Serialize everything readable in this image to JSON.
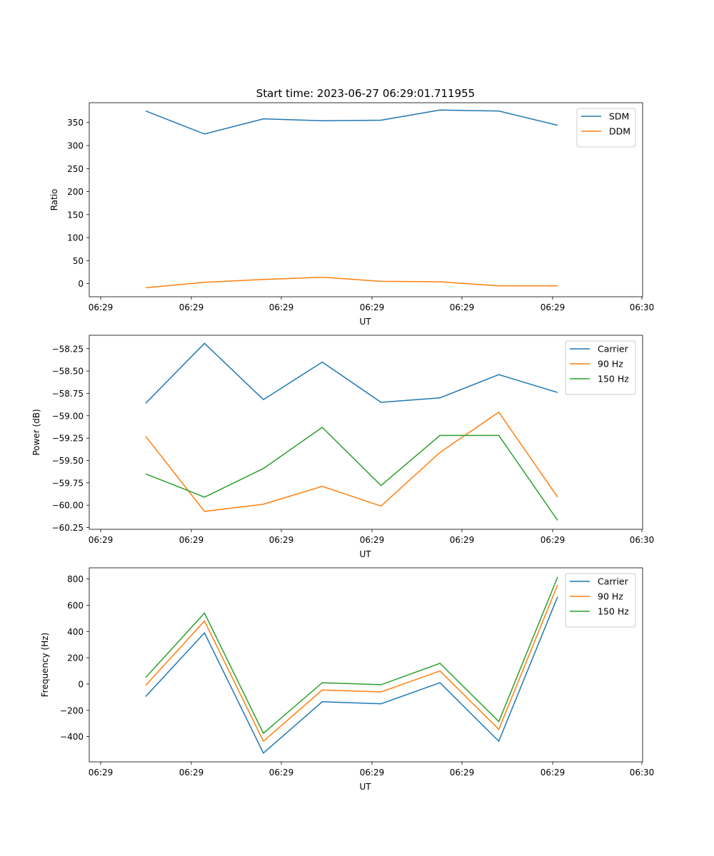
{
  "figure_title": "Start time: 2023-06-27 06:29:01.711955",
  "colors": {
    "blue": "#1f77b4",
    "orange": "#ff7f0e",
    "green": "#2ca02c"
  },
  "chart_data": [
    {
      "type": "line",
      "title": "Start time: 2023-06-27 06:29:01.711955",
      "xlabel": "UT",
      "ylabel": "Ratio",
      "x_tick_labels": [
        "06:29",
        "06:29",
        "06:29",
        "06:29",
        "06:29",
        "06:29",
        "06:30"
      ],
      "x": [
        "06:29:01.712",
        "06:29:02.367",
        "06:29:03.022",
        "06:29:03.677",
        "06:29:04.332",
        "06:29:04.987",
        "06:29:05.642",
        "06:29:06.297"
      ],
      "yticks": [
        0,
        50,
        100,
        150,
        200,
        250,
        300,
        350
      ],
      "ylim": [
        -28.5,
        393
      ],
      "legend": "top-right",
      "grid": false,
      "series": [
        {
          "name": "SDM",
          "color": "#1f77b4",
          "values": [
            375,
            325,
            358,
            354,
            355,
            377,
            375,
            344
          ]
        },
        {
          "name": "DDM",
          "color": "#ff7f0e",
          "values": [
            -9,
            3,
            9,
            14,
            5,
            4,
            -5,
            -5
          ]
        }
      ]
    },
    {
      "type": "line",
      "title": "",
      "xlabel": "UT",
      "ylabel": "Power (dB)",
      "x_tick_labels": [
        "06:29",
        "06:29",
        "06:29",
        "06:29",
        "06:29",
        "06:29",
        "06:30"
      ],
      "x": [
        "06:29:01.712",
        "06:29:02.367",
        "06:29:03.022",
        "06:29:03.677",
        "06:29:04.332",
        "06:29:04.987",
        "06:29:05.642",
        "06:29:06.297"
      ],
      "yticks": [
        -60.25,
        -60.0,
        -59.75,
        -59.5,
        -59.25,
        -59.0,
        -58.75,
        -58.5,
        -58.25
      ],
      "ylim": [
        -60.27,
        -58.1
      ],
      "legend": "top-right",
      "grid": false,
      "series": [
        {
          "name": "Carrier",
          "color": "#1f77b4",
          "values": [
            -58.86,
            -58.19,
            -58.82,
            -58.4,
            -58.85,
            -58.8,
            -58.54,
            -58.74
          ]
        },
        {
          "name": "90 Hz",
          "color": "#ff7f0e",
          "values": [
            -59.23,
            -60.07,
            -59.99,
            -59.79,
            -60.01,
            -59.41,
            -58.96,
            -59.91
          ]
        },
        {
          "name": "150 Hz",
          "color": "#2ca02c",
          "values": [
            -59.65,
            -59.91,
            -59.59,
            -59.13,
            -59.78,
            -59.22,
            -59.22,
            -60.17
          ]
        }
      ]
    },
    {
      "type": "line",
      "title": "",
      "xlabel": "UT",
      "ylabel": "Frequency (Hz)",
      "x_tick_labels": [
        "06:29",
        "06:29",
        "06:29",
        "06:29",
        "06:29",
        "06:29",
        "06:30"
      ],
      "x": [
        "06:29:01.712",
        "06:29:02.367",
        "06:29:03.022",
        "06:29:03.677",
        "06:29:04.332",
        "06:29:04.987",
        "06:29:05.642",
        "06:29:06.297"
      ],
      "yticks": [
        -400,
        -200,
        0,
        200,
        400,
        600,
        800
      ],
      "ylim": [
        -592,
        885
      ],
      "legend": "top-right",
      "grid": false,
      "series": [
        {
          "name": "Carrier",
          "color": "#1f77b4",
          "values": [
            -95,
            390,
            -525,
            -135,
            -150,
            10,
            -435,
            665
          ]
        },
        {
          "name": "90 Hz",
          "color": "#ff7f0e",
          "values": [
            -10,
            480,
            -435,
            -45,
            -60,
            100,
            -345,
            755
          ]
        },
        {
          "name": "150 Hz",
          "color": "#2ca02c",
          "values": [
            50,
            540,
            -375,
            10,
            -5,
            158,
            -285,
            815
          ]
        }
      ]
    }
  ]
}
